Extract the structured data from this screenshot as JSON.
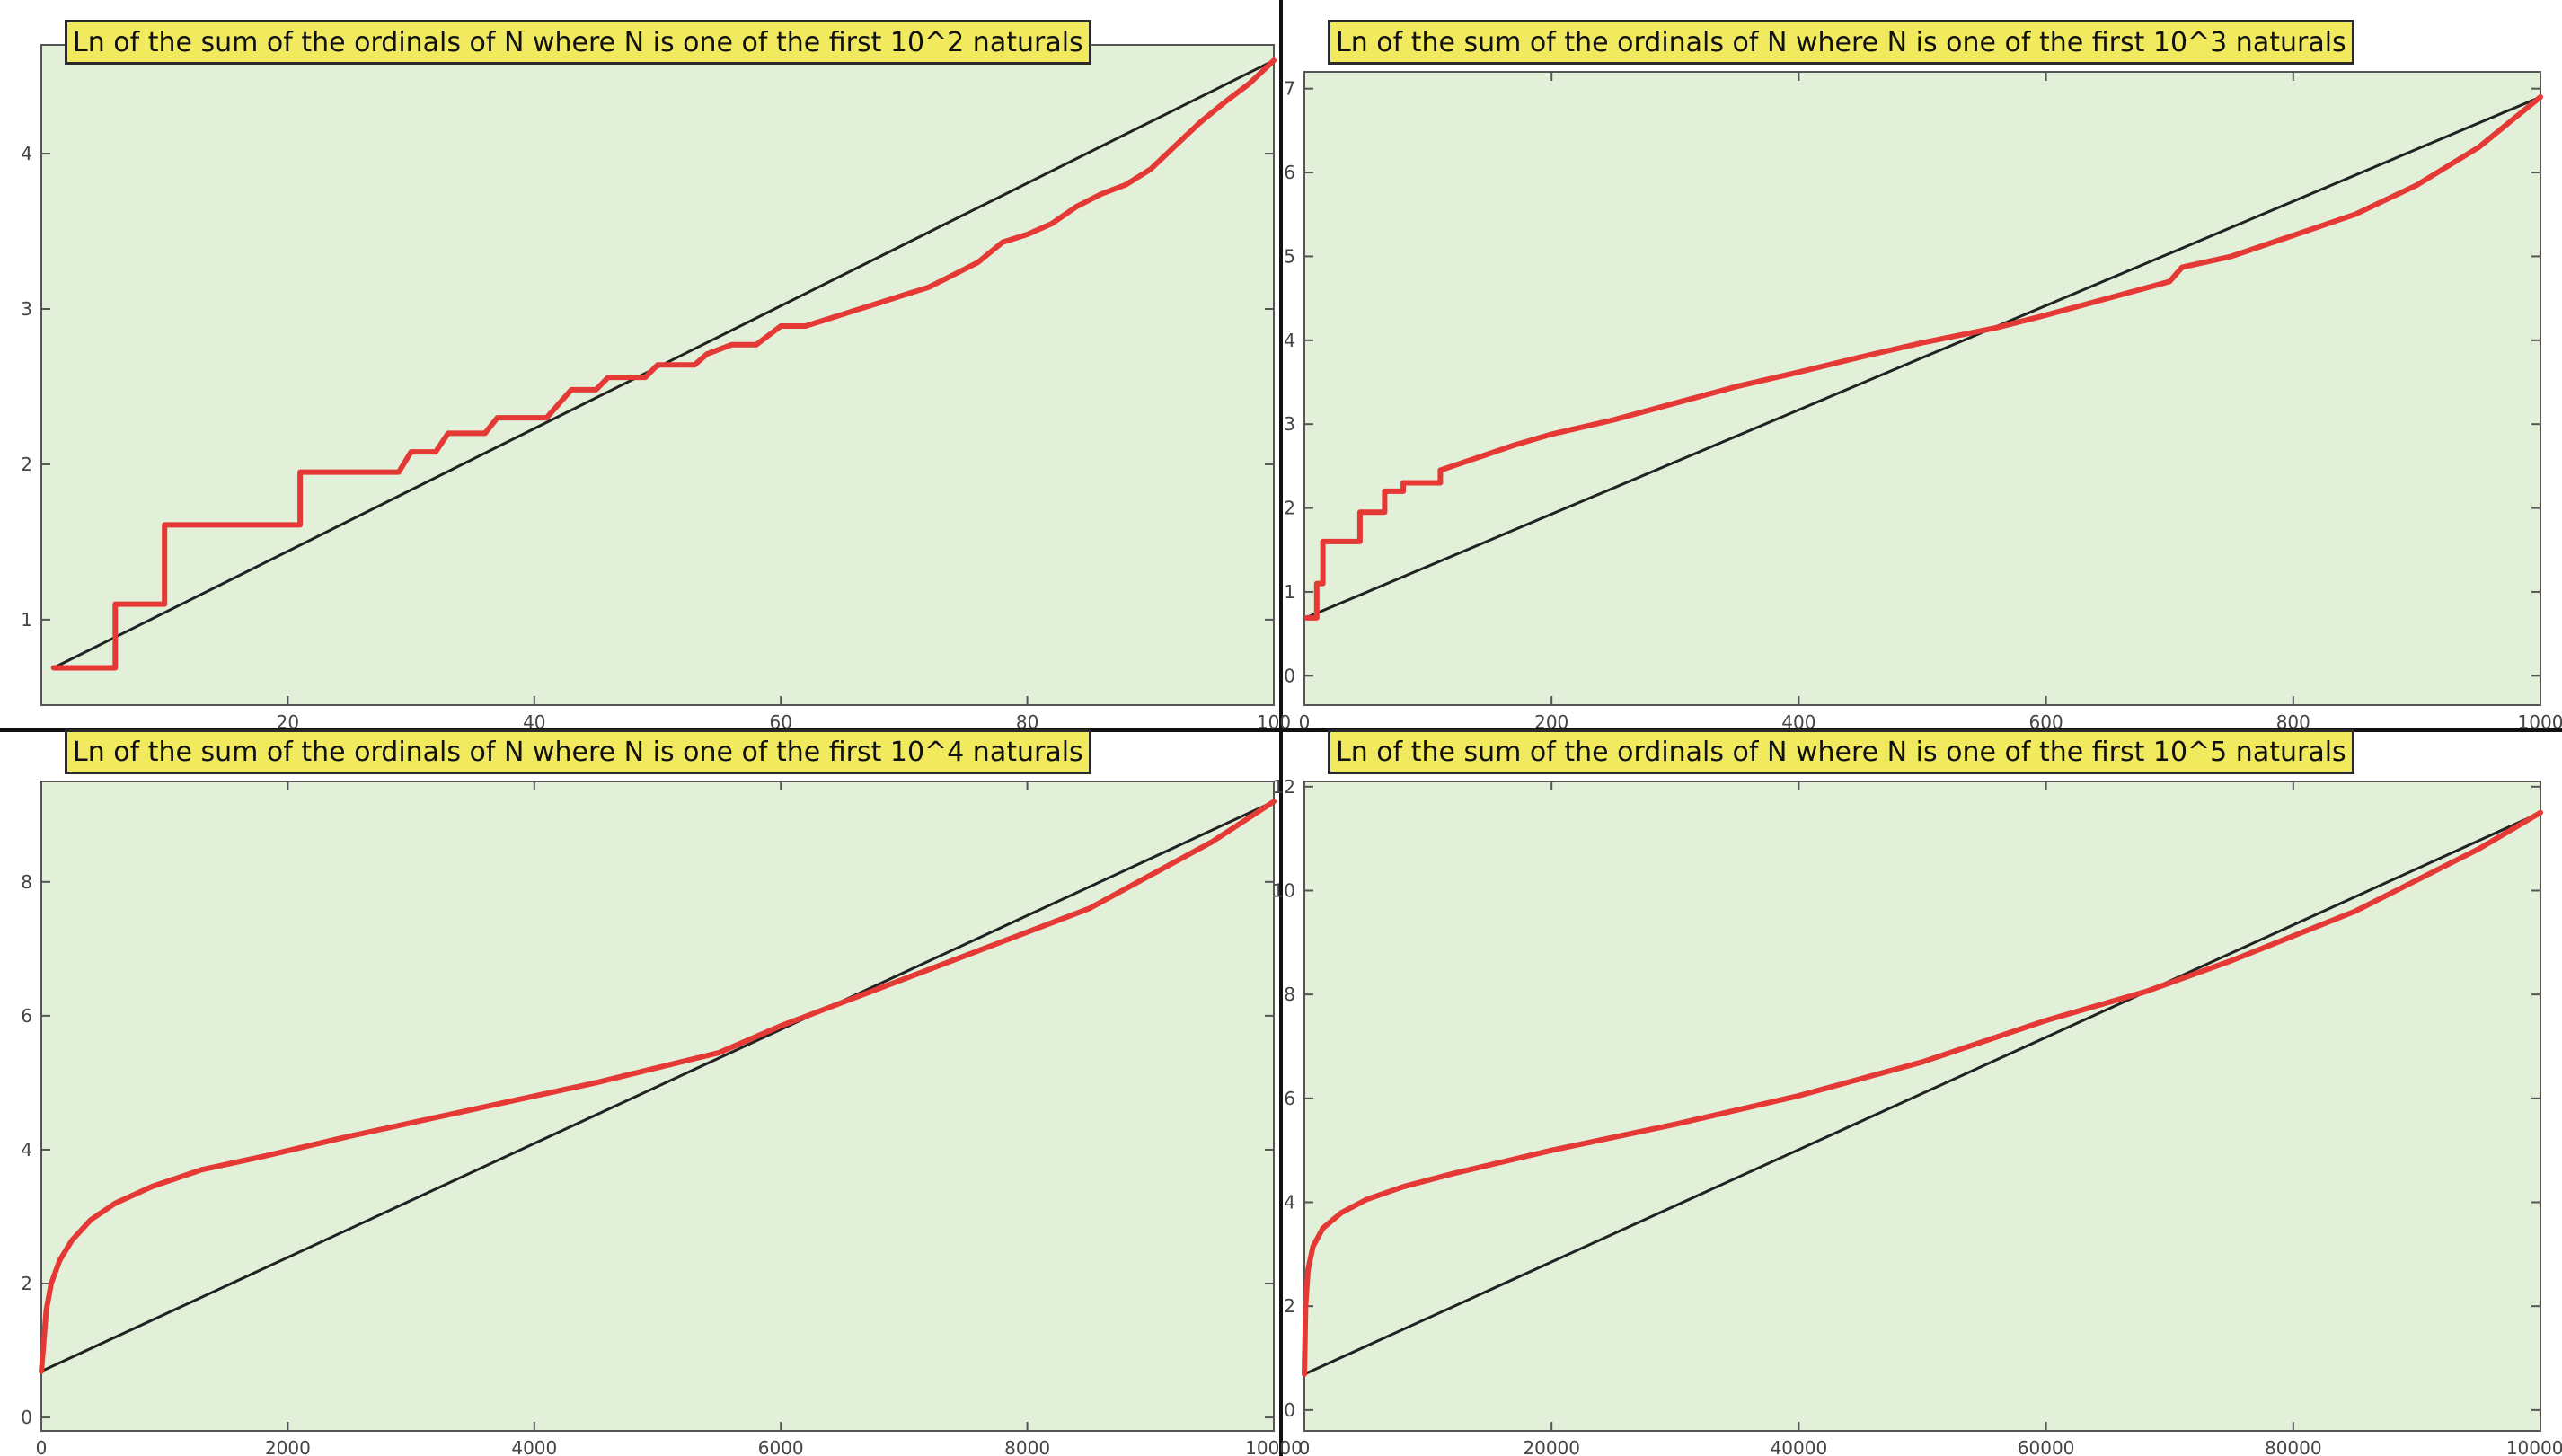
{
  "colors": {
    "background": "#e2f0da",
    "curve": "#e53935",
    "reference_line": "#222222",
    "title_bg": "#f2ea5e"
  },
  "chart_data": [
    {
      "type": "line",
      "title": "Ln of the sum of the ordinals of N where N is one of the first 10^2 naturals",
      "xlabel": "",
      "ylabel": "",
      "xlim": [
        0,
        100
      ],
      "ylim": [
        0.45,
        4.7
      ],
      "xticks": [
        0,
        20,
        40,
        60,
        80,
        100
      ],
      "xtick_labels": [
        "",
        "20",
        "40",
        "60",
        "80",
        "100"
      ],
      "yticks": [
        1,
        2,
        3,
        4
      ],
      "ytick_labels": [
        "1",
        "2",
        "3",
        "4"
      ],
      "grid": false,
      "series": [
        {
          "style": "step",
          "x": [
            1,
            6,
            6,
            10,
            10,
            21,
            21,
            29,
            30,
            32,
            33,
            36,
            37,
            41,
            43,
            45,
            46,
            49,
            50,
            53,
            54,
            56,
            58,
            60,
            62,
            64,
            66,
            68,
            70,
            72,
            74,
            76,
            78,
            80,
            82,
            84,
            86,
            88,
            90,
            92,
            94,
            96,
            98,
            100
          ],
          "y": [
            0.69,
            0.69,
            1.1,
            1.1,
            1.61,
            1.61,
            1.95,
            1.95,
            2.08,
            2.08,
            2.2,
            2.2,
            2.3,
            2.3,
            2.48,
            2.48,
            2.56,
            2.56,
            2.64,
            2.64,
            2.71,
            2.77,
            2.77,
            2.89,
            2.89,
            2.94,
            2.99,
            3.04,
            3.09,
            3.14,
            3.22,
            3.3,
            3.43,
            3.48,
            3.55,
            3.66,
            3.74,
            3.8,
            3.9,
            4.05,
            4.2,
            4.33,
            4.45,
            4.6
          ]
        },
        {
          "style": "line",
          "x": [
            1,
            100
          ],
          "y": [
            0.69,
            4.6
          ]
        }
      ]
    },
    {
      "type": "line",
      "title": "Ln of the sum of the ordinals of N where N is one of the first 10^3 naturals",
      "xlabel": "",
      "ylabel": "",
      "xlim": [
        0,
        1000
      ],
      "ylim": [
        -0.35,
        7.2
      ],
      "xticks": [
        0,
        200,
        400,
        600,
        800,
        1000
      ],
      "xtick_labels": [
        "0",
        "200",
        "400",
        "600",
        "800",
        "1000"
      ],
      "yticks": [
        0,
        1,
        2,
        3,
        4,
        5,
        6,
        7
      ],
      "ytick_labels": [
        "0",
        "1",
        "2",
        "3",
        "4",
        "5",
        "6",
        "7"
      ],
      "grid": false,
      "series": [
        {
          "style": "step",
          "x": [
            2,
            10,
            10,
            15,
            15,
            45,
            45,
            65,
            65,
            80,
            80,
            110,
            110,
            130,
            150,
            170,
            200,
            250,
            300,
            350,
            400,
            450,
            500,
            560,
            600,
            650,
            700,
            710,
            750,
            800,
            850,
            900,
            950,
            1000
          ],
          "y": [
            0.69,
            0.69,
            1.1,
            1.1,
            1.6,
            1.6,
            1.95,
            1.95,
            2.2,
            2.2,
            2.3,
            2.3,
            2.45,
            2.55,
            2.65,
            2.75,
            2.88,
            3.05,
            3.25,
            3.45,
            3.62,
            3.8,
            3.97,
            4.15,
            4.3,
            4.5,
            4.7,
            4.87,
            5.0,
            5.25,
            5.5,
            5.85,
            6.3,
            6.9
          ]
        },
        {
          "style": "line",
          "x": [
            1,
            1000
          ],
          "y": [
            0.69,
            6.9
          ]
        }
      ]
    },
    {
      "type": "line",
      "title": "Ln of the sum of the ordinals of N where N is one of the first 10^4 naturals",
      "xlabel": "",
      "ylabel": "",
      "xlim": [
        0,
        10000
      ],
      "ylim": [
        -0.2,
        9.5
      ],
      "xticks": [
        0,
        2000,
        4000,
        6000,
        8000,
        10000
      ],
      "xtick_labels": [
        "0",
        "2000",
        "4000",
        "6000",
        "8000",
        "10000"
      ],
      "yticks": [
        0,
        2,
        4,
        6,
        8
      ],
      "ytick_labels": [
        "0",
        "2",
        "4",
        "6",
        "8"
      ],
      "grid": false,
      "series": [
        {
          "style": "line",
          "x": [
            1,
            40,
            80,
            150,
            250,
            400,
            600,
            900,
            1300,
            1800,
            2500,
            3500,
            4500,
            5500,
            6000,
            6500,
            7500,
            8500,
            9500,
            10000
          ],
          "y": [
            0.69,
            1.6,
            2.0,
            2.35,
            2.65,
            2.95,
            3.2,
            3.45,
            3.7,
            3.9,
            4.2,
            4.6,
            5.0,
            5.45,
            5.85,
            6.2,
            6.9,
            7.6,
            8.6,
            9.2
          ]
        },
        {
          "style": "line",
          "x": [
            1,
            10000
          ],
          "y": [
            0.69,
            9.2
          ]
        }
      ]
    },
    {
      "type": "line",
      "title": "Ln of the sum of the ordinals of N where N is one of the first 10^5 naturals",
      "xlabel": "",
      "ylabel": "",
      "xlim": [
        0,
        100000
      ],
      "ylim": [
        -0.4,
        12.1
      ],
      "xticks": [
        0,
        20000,
        40000,
        60000,
        80000,
        100000
      ],
      "xtick_labels": [
        "0",
        "20000",
        "40000",
        "60000",
        "80000",
        "100000"
      ],
      "yticks": [
        0,
        2,
        4,
        6,
        8,
        10,
        12
      ],
      "ytick_labels": [
        "0",
        "2",
        "4",
        "6",
        "8",
        "10",
        "12"
      ],
      "grid": false,
      "series": [
        {
          "style": "line",
          "x": [
            1,
            100,
            300,
            700,
            1500,
            3000,
            5000,
            8000,
            12000,
            20000,
            30000,
            40000,
            50000,
            60000,
            68000,
            75000,
            85000,
            95000,
            100000
          ],
          "y": [
            0.69,
            2.0,
            2.7,
            3.15,
            3.5,
            3.8,
            4.05,
            4.3,
            4.55,
            5.0,
            5.5,
            6.05,
            6.7,
            7.5,
            8.05,
            8.65,
            9.6,
            10.8,
            11.5
          ]
        },
        {
          "style": "line",
          "x": [
            1,
            100000
          ],
          "y": [
            0.69,
            11.5
          ]
        }
      ]
    }
  ]
}
